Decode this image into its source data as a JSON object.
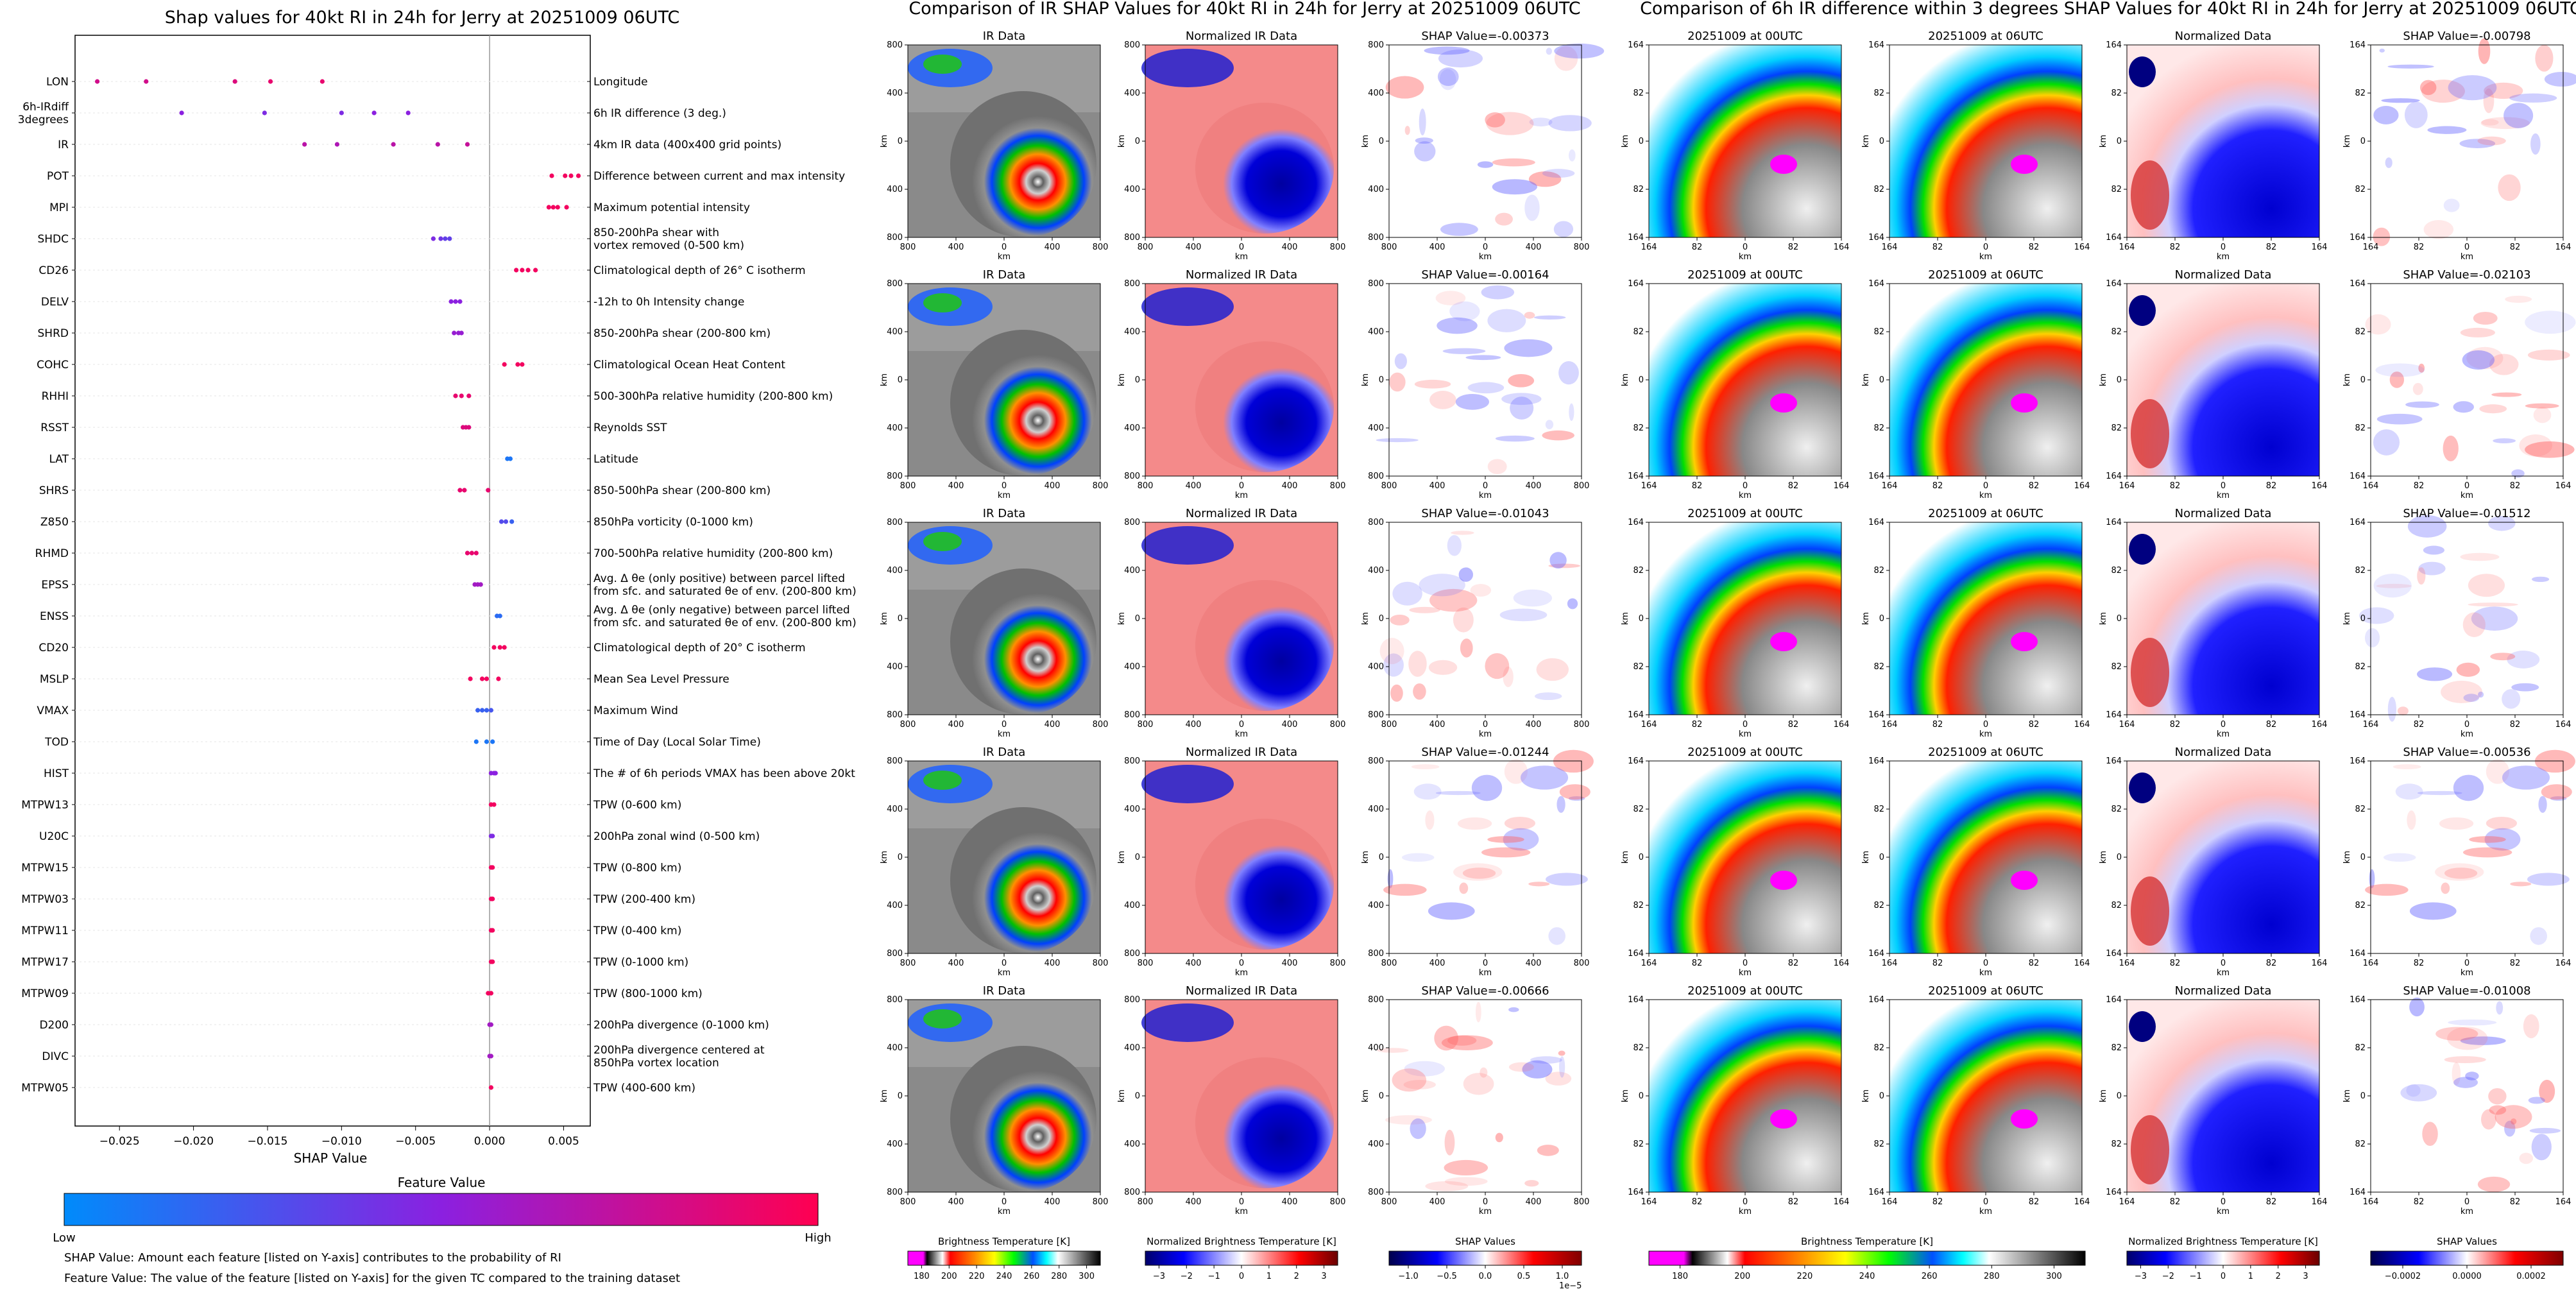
{
  "chart_data": [
    {
      "type": "scatter",
      "title": "Shap values for 40kt RI in 24h for Jerry at 20251009 06UTC",
      "xlabel": "SHAP Value",
      "xlim": [
        -0.028,
        0.0068
      ],
      "xticks": [
        -0.025,
        -0.02,
        -0.015,
        -0.01,
        -0.005,
        0.0,
        0.005
      ],
      "xtick_labels": [
        "−0.025",
        "−0.020",
        "−0.015",
        "−0.010",
        "−0.005",
        "0.000",
        "0.005"
      ],
      "colorbar": {
        "title": "Feature Value",
        "low": "Low",
        "high": "High",
        "colors": [
          "#008bfb",
          "#ff0051"
        ]
      },
      "notes": [
        "SHAP Value: Amount each feature [listed on Y-axis] contributes to the probability of RI",
        "Feature Value: The value of the feature [listed on Y-axis] for the given TC compared to the training dataset"
      ],
      "features": [
        {
          "name": "LON",
          "desc": "Longitude",
          "points": [
            [
              -0.0265,
              0.8
            ],
            [
              -0.0232,
              0.8
            ],
            [
              -0.0172,
              0.85
            ],
            [
              -0.0148,
              0.9
            ],
            [
              -0.0113,
              0.9
            ]
          ]
        },
        {
          "name": "6h-IRdiff\n3degrees",
          "desc": "6h IR difference (3 deg.)",
          "points": [
            [
              -0.0208,
              0.5
            ],
            [
              -0.0152,
              0.45
            ],
            [
              -0.01,
              0.45
            ],
            [
              -0.0078,
              0.5
            ],
            [
              -0.0055,
              0.5
            ]
          ]
        },
        {
          "name": "IR",
          "desc": "4km IR data (400x400 grid points)",
          "points": [
            [
              -0.0125,
              0.7
            ],
            [
              -0.0103,
              0.65
            ],
            [
              -0.0065,
              0.7
            ],
            [
              -0.0035,
              0.7
            ],
            [
              -0.0015,
              0.75
            ]
          ]
        },
        {
          "name": "POT",
          "desc": "Difference between current and max intensity",
          "points": [
            [
              0.0042,
              0.95
            ],
            [
              0.0051,
              0.95
            ],
            [
              0.0055,
              0.95
            ],
            [
              0.006,
              0.95
            ]
          ]
        },
        {
          "name": "MPI",
          "desc": "Maximum potential intensity",
          "points": [
            [
              0.004,
              0.95
            ],
            [
              0.0043,
              0.95
            ],
            [
              0.0046,
              0.95
            ],
            [
              0.0052,
              0.95
            ]
          ]
        },
        {
          "name": "SHDC",
          "desc": "850-200hPa shear with\nvortex removed (0-500 km)",
          "points": [
            [
              -0.0038,
              0.45
            ],
            [
              -0.0033,
              0.4
            ],
            [
              -0.003,
              0.35
            ],
            [
              -0.0027,
              0.35
            ]
          ]
        },
        {
          "name": "CD26",
          "desc": "Climatological depth of 26° C isotherm",
          "points": [
            [
              0.0018,
              0.95
            ],
            [
              0.0022,
              0.95
            ],
            [
              0.0026,
              0.95
            ],
            [
              0.0031,
              0.95
            ]
          ]
        },
        {
          "name": "DELV",
          "desc": "-12h to 0h Intensity change",
          "points": [
            [
              -0.0026,
              0.5
            ],
            [
              -0.0023,
              0.5
            ],
            [
              -0.002,
              0.5
            ]
          ]
        },
        {
          "name": "SHRD",
          "desc": "850-200hPa shear (200-800 km)",
          "points": [
            [
              -0.0024,
              0.55
            ],
            [
              -0.0021,
              0.55
            ],
            [
              -0.0019,
              0.55
            ]
          ]
        },
        {
          "name": "COHC",
          "desc": "Climatological Ocean Heat Content",
          "points": [
            [
              0.001,
              0.95
            ],
            [
              0.0019,
              0.95
            ],
            [
              0.0022,
              0.95
            ]
          ]
        },
        {
          "name": "RHHI",
          "desc": "500-300hPa relative humidity (200-800 km)",
          "points": [
            [
              -0.0023,
              0.9
            ],
            [
              -0.0019,
              0.9
            ],
            [
              -0.0014,
              0.9
            ]
          ]
        },
        {
          "name": "RSST",
          "desc": "Reynolds SST",
          "points": [
            [
              -0.0018,
              0.85
            ],
            [
              -0.0016,
              0.85
            ],
            [
              -0.0014,
              0.85
            ]
          ]
        },
        {
          "name": "LAT",
          "desc": "Latitude",
          "points": [
            [
              0.0012,
              0.1
            ],
            [
              0.0014,
              0.1
            ]
          ]
        },
        {
          "name": "SHRS",
          "desc": "850-500hPa shear (200-800 km)",
          "points": [
            [
              -0.002,
              0.9
            ],
            [
              -0.0017,
              0.9
            ],
            [
              -0.0001,
              0.9
            ]
          ]
        },
        {
          "name": "Z850",
          "desc": "850hPa vorticity (0-1000 km)",
          "points": [
            [
              0.0008,
              0.3
            ],
            [
              0.0011,
              0.3
            ],
            [
              0.0015,
              0.2
            ]
          ]
        },
        {
          "name": "RHMD",
          "desc": "700-500hPa relative humidity (200-800 km)",
          "points": [
            [
              -0.0015,
              0.9
            ],
            [
              -0.0012,
              0.9
            ],
            [
              -0.0009,
              0.9
            ]
          ]
        },
        {
          "name": "EPSS",
          "desc": "Avg. Δ θe (only positive) between parcel lifted\nfrom sfc. and saturated θe of env. (200-800 km)",
          "points": [
            [
              -0.001,
              0.6
            ],
            [
              -0.0008,
              0.6
            ],
            [
              -0.0006,
              0.6
            ]
          ]
        },
        {
          "name": "ENSS",
          "desc": "Avg. Δ θe (only negative) between parcel lifted\nfrom sfc. and saturated θe of env. (200-800 km)",
          "points": [
            [
              0.0005,
              0.15
            ],
            [
              0.0007,
              0.15
            ]
          ]
        },
        {
          "name": "CD20",
          "desc": "Climatological depth of 20° C isotherm",
          "points": [
            [
              0.0003,
              0.95
            ],
            [
              0.0007,
              0.95
            ],
            [
              0.001,
              0.95
            ]
          ]
        },
        {
          "name": "MSLP",
          "desc": "Mean Sea Level Pressure",
          "points": [
            [
              -0.0013,
              0.95
            ],
            [
              -0.0005,
              0.95
            ],
            [
              -0.0002,
              0.95
            ],
            [
              0.0006,
              0.95
            ]
          ]
        },
        {
          "name": "VMAX",
          "desc": "Maximum Wind",
          "points": [
            [
              -0.0008,
              0.2
            ],
            [
              -0.0005,
              0.2
            ],
            [
              -0.0002,
              0.2
            ],
            [
              0.0001,
              0.25
            ]
          ]
        },
        {
          "name": "TOD",
          "desc": "Time of Day (Local Solar Time)",
          "points": [
            [
              -0.0009,
              0.1
            ],
            [
              -0.0002,
              0.1
            ],
            [
              0.0002,
              0.1
            ]
          ]
        },
        {
          "name": "HIST",
          "desc": "The # of 6h periods VMAX has been above 20kt",
          "points": [
            [
              0.0001,
              0.5
            ],
            [
              0.0003,
              0.5
            ],
            [
              0.0004,
              0.5
            ]
          ]
        },
        {
          "name": "MTPW13",
          "desc": "TPW (0-600 km)",
          "points": [
            [
              0.0001,
              0.95
            ],
            [
              0.0003,
              0.95
            ]
          ]
        },
        {
          "name": "U20C",
          "desc": "200hPa zonal wind (0-500 km)",
          "points": [
            [
              0.0001,
              0.45
            ],
            [
              0.0002,
              0.45
            ]
          ]
        },
        {
          "name": "MTPW15",
          "desc": "TPW (0-800 km)",
          "points": [
            [
              0.0001,
              0.95
            ],
            [
              0.0002,
              0.95
            ]
          ]
        },
        {
          "name": "MTPW03",
          "desc": "TPW (200-400 km)",
          "points": [
            [
              0.0001,
              0.95
            ],
            [
              0.0002,
              0.95
            ]
          ]
        },
        {
          "name": "MTPW11",
          "desc": "TPW (0-400 km)",
          "points": [
            [
              0.0001,
              0.95
            ],
            [
              0.0002,
              0.95
            ]
          ]
        },
        {
          "name": "MTPW17",
          "desc": "TPW (0-1000 km)",
          "points": [
            [
              0.0001,
              0.95
            ],
            [
              0.0002,
              0.95
            ]
          ]
        },
        {
          "name": "MTPW09",
          "desc": "TPW (800-1000 km)",
          "points": [
            [
              -0.0001,
              0.95
            ],
            [
              0.0001,
              0.95
            ]
          ]
        },
        {
          "name": "D200",
          "desc": "200hPa divergence (0-1000 km)",
          "points": [
            [
              0.0,
              0.6
            ],
            [
              0.0001,
              0.6
            ]
          ]
        },
        {
          "name": "DIVC",
          "desc": "200hPa divergence centered at\n850hPa vortex location",
          "points": [
            [
              0.0,
              0.6
            ],
            [
              0.0001,
              0.6
            ]
          ]
        },
        {
          "name": "MTPW05",
          "desc": "TPW (400-600 km)",
          "points": [
            [
              0.0001,
              0.95
            ]
          ]
        }
      ]
    },
    {
      "type": "heatmap",
      "title": "Comparison of IR SHAP Values for 40kt RI in 24h for Jerry at 20251009 06UTC",
      "panel_titles": [
        "IR Data",
        "Normalized IR Data"
      ],
      "shap_titles": [
        "SHAP Value=-0.00373",
        "SHAP Value=-0.00164",
        "SHAP Value=-0.01043",
        "SHAP Value=-0.01244",
        "SHAP Value=-0.00666"
      ],
      "axis_unit": "km",
      "ticks": [
        "800",
        "400",
        "0",
        "400",
        "800"
      ],
      "colorbars": [
        {
          "label": "Brightness Temperature [K]",
          "ticks": [
            "180",
            "200",
            "220",
            "240",
            "260",
            "280",
            "300"
          ]
        },
        {
          "label": "Normalized Brightness Temperature [K]",
          "ticks": [
            "−3",
            "−2",
            "−1",
            "0",
            "1",
            "2",
            "3"
          ]
        },
        {
          "label": "SHAP Values",
          "ticks": [
            "−1.0",
            "−0.5",
            "0.0",
            "0.5",
            "1.0"
          ],
          "offset": "1e−5"
        }
      ]
    },
    {
      "type": "heatmap",
      "title": "Comparison of 6h IR difference within 3 degrees SHAP Values for 40kt RI in 24h for Jerry at 20251009 06UTC",
      "panel_titles": [
        "20251009 at 00UTC",
        "20251009 at 06UTC",
        "Normalized Data"
      ],
      "shap_titles": [
        "SHAP Value=-0.00798",
        "SHAP Value=-0.02103",
        "SHAP Value=-0.01512",
        "SHAP Value=-0.00536",
        "SHAP Value=-0.01008"
      ],
      "axis_unit": "km",
      "ticks": [
        "164",
        "82",
        "0",
        "82",
        "164"
      ],
      "colorbars": [
        {
          "label": "Brightness Temperature [K]",
          "ticks": [
            "180",
            "200",
            "220",
            "240",
            "260",
            "280",
            "300"
          ]
        },
        {
          "label": "Normalized Brightness Temperature [K]",
          "ticks": [
            "−3",
            "−2",
            "−1",
            "0",
            "1",
            "2",
            "3"
          ]
        },
        {
          "label": "SHAP Values",
          "ticks": [
            "−0.0002",
            "0.0000",
            "0.0002"
          ]
        }
      ]
    }
  ]
}
